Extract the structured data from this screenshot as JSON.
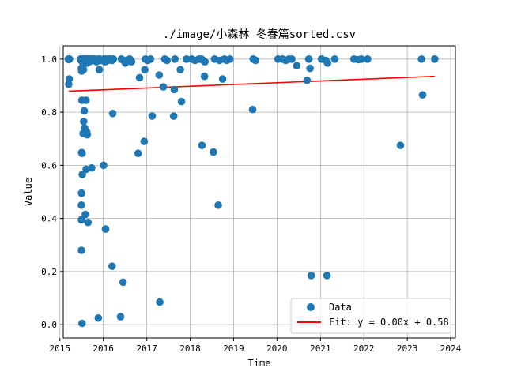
{
  "chart_data": {
    "type": "scatter",
    "title": "./image/小森林 冬春篇sorted.csv",
    "xlabel": "Time",
    "ylabel": "Value",
    "xlim": [
      "2015-01-29",
      "2024-02-10"
    ],
    "ylim": [
      -0.05,
      1.05
    ],
    "x_ticks": [
      "2015",
      "2016",
      "2017",
      "2018",
      "2019",
      "2020",
      "2021",
      "2022",
      "2023",
      "2024"
    ],
    "y_ticks": [
      "0.0",
      "0.2",
      "0.4",
      "0.6",
      "0.8",
      "1.0"
    ],
    "grid": true,
    "legend_position": "lower-right",
    "colors": {
      "data": "#1f77b4",
      "fit": "#ff0000",
      "grid": "#b0b0b0"
    },
    "series": [
      {
        "name": "Data",
        "kind": "scatter",
        "points": [
          [
            "2015-03-13",
            1.0
          ],
          [
            "2015-03-18",
            0.998
          ],
          [
            "2015-03-22",
            1.0
          ],
          [
            "2015-03-16",
            0.905
          ],
          [
            "2015-03-20",
            0.925
          ],
          [
            "2015-06-24",
            1.0
          ],
          [
            "2015-06-28",
            0.995
          ],
          [
            "2015-07-03",
            1.0
          ],
          [
            "2015-07-08",
            0.99
          ],
          [
            "2015-07-13",
            1.0
          ],
          [
            "2015-07-18",
            0.985
          ],
          [
            "2015-07-23",
            1.0
          ],
          [
            "2015-07-28",
            0.995
          ],
          [
            "2015-08-02",
            1.0
          ],
          [
            "2015-08-07",
            0.99
          ],
          [
            "2015-08-12",
            1.0
          ],
          [
            "2015-08-17",
            0.985
          ],
          [
            "2015-08-22",
            1.0
          ],
          [
            "2015-08-27",
            0.995
          ],
          [
            "2015-09-01",
            1.0
          ],
          [
            "2015-09-06",
            0.99
          ],
          [
            "2015-09-11",
            1.0
          ],
          [
            "2015-09-16",
            0.995
          ],
          [
            "2015-09-21",
            1.0
          ],
          [
            "2015-09-26",
            1.0
          ],
          [
            "2015-07-01",
            0.965
          ],
          [
            "2015-07-03",
            0.955
          ],
          [
            "2015-07-10",
            0.97
          ],
          [
            "2015-07-18",
            0.96
          ],
          [
            "2015-07-05",
            0.845
          ],
          [
            "2015-07-25",
            0.805
          ],
          [
            "2015-08-08",
            0.845
          ],
          [
            "2015-07-20",
            0.765
          ],
          [
            "2015-07-28",
            0.74
          ],
          [
            "2015-07-15",
            0.72
          ],
          [
            "2015-08-14",
            0.725
          ],
          [
            "2015-08-18",
            0.715
          ],
          [
            "2015-07-03",
            0.648
          ],
          [
            "2015-07-06",
            0.645
          ],
          [
            "2015-07-08",
            0.565
          ],
          [
            "2015-08-10",
            0.585
          ],
          [
            "2015-09-25",
            0.59
          ],
          [
            "2015-07-02",
            0.495
          ],
          [
            "2015-07-01",
            0.45
          ],
          [
            "2015-08-03",
            0.415
          ],
          [
            "2015-07-01",
            0.395
          ],
          [
            "2015-08-25",
            0.385
          ],
          [
            "2015-07-01",
            0.28
          ],
          [
            "2015-07-06",
            0.005
          ],
          [
            "2015-11-20",
            0.025
          ],
          [
            "2015-10-01",
            1.0
          ],
          [
            "2015-10-10",
            0.995
          ],
          [
            "2015-10-20",
            1.0
          ],
          [
            "2015-11-05",
            0.99
          ],
          [
            "2015-11-20",
            1.0
          ],
          [
            "2015-12-05",
            0.995
          ],
          [
            "2015-11-28",
            0.96
          ],
          [
            "2015-12-01",
            1.0
          ],
          [
            "2015-12-20",
            0.995
          ],
          [
            "2016-01-05",
            1.0
          ],
          [
            "2016-01-15",
            0.99
          ],
          [
            "2016-01-25",
            1.0
          ],
          [
            "2016-02-10",
            0.995
          ],
          [
            "2016-02-20",
            1.0
          ],
          [
            "2016-03-01",
            1.0
          ],
          [
            "2016-03-15",
            0.995
          ],
          [
            "2016-03-25",
            1.0
          ],
          [
            "2016-01-03",
            0.6
          ],
          [
            "2016-01-20",
            0.36
          ],
          [
            "2016-03-20",
            0.795
          ],
          [
            "2016-03-15",
            0.22
          ],
          [
            "2016-06-15",
            0.16
          ],
          [
            "2016-05-25",
            0.03
          ],
          [
            "2016-06-01",
            1.0
          ],
          [
            "2016-06-20",
            0.995
          ],
          [
            "2016-07-05",
            0.985
          ],
          [
            "2016-07-20",
            0.995
          ],
          [
            "2016-08-10",
            1.0
          ],
          [
            "2016-08-25",
            0.99
          ],
          [
            "2016-10-20",
            0.645
          ],
          [
            "2016-11-01",
            0.93
          ],
          [
            "2016-12-15",
            0.96
          ],
          [
            "2016-12-10",
            0.69
          ],
          [
            "2016-12-20",
            1.0
          ],
          [
            "2017-01-10",
            0.995
          ],
          [
            "2017-02-01",
            1.0
          ],
          [
            "2017-02-15",
            0.785
          ],
          [
            "2017-04-15",
            0.94
          ],
          [
            "2017-05-20",
            0.895
          ],
          [
            "2017-04-20",
            0.085
          ],
          [
            "2017-06-01",
            1.0
          ],
          [
            "2017-06-20",
            0.995
          ],
          [
            "2017-08-15",
            0.785
          ],
          [
            "2017-08-20",
            0.885
          ],
          [
            "2017-08-25",
            1.0
          ],
          [
            "2017-10-10",
            0.96
          ],
          [
            "2017-10-20",
            0.84
          ],
          [
            "2017-12-01",
            1.0
          ],
          [
            "2018-01-15",
            1.0
          ],
          [
            "2018-02-10",
            0.995
          ],
          [
            "2018-03-15",
            1.0
          ],
          [
            "2018-04-05",
            1.0
          ],
          [
            "2018-04-20",
            0.995
          ],
          [
            "2018-05-05",
            0.99
          ],
          [
            "2018-04-10",
            0.675
          ],
          [
            "2018-05-01",
            0.935
          ],
          [
            "2018-07-15",
            0.65
          ],
          [
            "2018-07-25",
            1.0
          ],
          [
            "2018-08-25",
            0.45
          ],
          [
            "2018-09-05",
            0.995
          ],
          [
            "2018-10-01",
            0.925
          ],
          [
            "2018-10-15",
            1.0
          ],
          [
            "2018-11-05",
            0.995
          ],
          [
            "2018-12-01",
            1.0
          ],
          [
            "2019-06-10",
            0.81
          ],
          [
            "2019-06-15",
            1.0
          ],
          [
            "2019-07-05",
            0.995
          ],
          [
            "2020-01-10",
            1.0
          ],
          [
            "2020-02-15",
            1.0
          ],
          [
            "2020-03-15",
            0.995
          ],
          [
            "2020-04-10",
            1.0
          ],
          [
            "2020-05-05",
            1.0
          ],
          [
            "2020-06-15",
            0.975
          ],
          [
            "2020-09-10",
            0.92
          ],
          [
            "2020-09-25",
            1.0
          ],
          [
            "2020-10-05",
            0.965
          ],
          [
            "2020-10-15",
            0.185
          ],
          [
            "2021-01-10",
            1.0
          ],
          [
            "2021-02-15",
            0.995
          ],
          [
            "2021-03-01",
            0.985
          ],
          [
            "2021-02-25",
            0.185
          ],
          [
            "2021-05-01",
            1.0
          ],
          [
            "2021-10-10",
            1.0
          ],
          [
            "2021-11-15",
            0.998
          ],
          [
            "2021-12-10",
            1.0
          ],
          [
            "2022-02-01",
            1.0
          ],
          [
            "2022-11-05",
            0.675
          ],
          [
            "2023-05-01",
            1.0
          ],
          [
            "2023-05-10",
            0.865
          ],
          [
            "2023-08-20",
            1.0
          ]
        ]
      },
      {
        "name": "Fit: y = 0.00x + 0.58",
        "kind": "line",
        "points": [
          [
            "2015-03-16",
            0.879
          ],
          [
            "2023-08-20",
            0.935
          ]
        ]
      }
    ]
  }
}
